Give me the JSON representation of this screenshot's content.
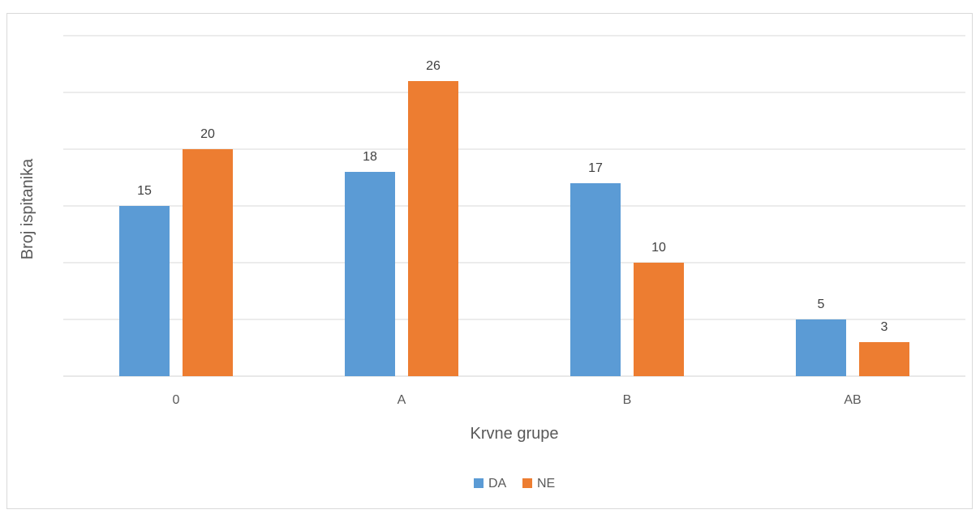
{
  "chart_data": {
    "type": "bar",
    "categories": [
      "0",
      "A",
      "B",
      "AB"
    ],
    "series": [
      {
        "name": "DA",
        "values": [
          15,
          18,
          17,
          5
        ],
        "color": "#5B9BD5"
      },
      {
        "name": "NE",
        "values": [
          20,
          26,
          10,
          3
        ],
        "color": "#ED7D31"
      }
    ],
    "title": "",
    "xlabel": "Krvne grupe",
    "ylabel": "Broj ispitanika",
    "ylim": [
      0,
      30
    ],
    "grid": true,
    "legend_position": "bottom",
    "colors": {
      "gridline": "#d9d9d9",
      "frame": "#d9d9d9"
    }
  }
}
